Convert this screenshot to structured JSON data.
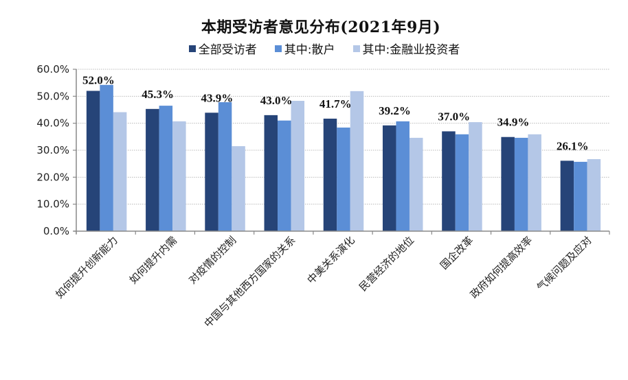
{
  "chart_data": {
    "type": "bar",
    "title": "本期受访者意见分布(2021年9月)",
    "xlabel": "",
    "ylabel": "",
    "ylim": [
      0,
      60
    ],
    "yticks": [
      "0.0%",
      "10.0%",
      "20.0%",
      "30.0%",
      "40.0%",
      "50.0%",
      "60.0%"
    ],
    "grid": true,
    "legend_position": "top",
    "categories": [
      "如何提升创新能力",
      "如何提升内需",
      "对疫情的控制",
      "中国与其他西方国家的关系",
      "中美关系演化",
      "民营经济的地位",
      "国企改革",
      "政府如何提高效率",
      "气候问题及应对"
    ],
    "series": [
      {
        "name": "全部受访者",
        "color": "#264478",
        "values": [
          52.0,
          45.3,
          43.9,
          43.0,
          41.7,
          39.2,
          37.0,
          34.9,
          26.1
        ]
      },
      {
        "name": "其中:散户",
        "color": "#5B8ED6",
        "values": [
          54.2,
          46.5,
          47.8,
          41.0,
          38.4,
          40.7,
          35.9,
          34.6,
          25.7
        ]
      },
      {
        "name": "其中:金融业投资者",
        "color": "#B4C7E7",
        "values": [
          44.1,
          40.7,
          31.5,
          48.3,
          51.9,
          34.6,
          40.4,
          35.9,
          26.7
        ]
      }
    ],
    "data_labels": [
      "52.0%",
      "45.3%",
      "43.9%",
      "43.0%",
      "41.7%",
      "39.2%",
      "37.0%",
      "34.9%",
      "26.1%"
    ]
  },
  "legend": [
    {
      "label": "全部受访者",
      "color": "#264478"
    },
    {
      "label": "其中:散户",
      "color": "#5B8ED6"
    },
    {
      "label": "其中:金融业投资者",
      "color": "#B4C7E7"
    }
  ]
}
